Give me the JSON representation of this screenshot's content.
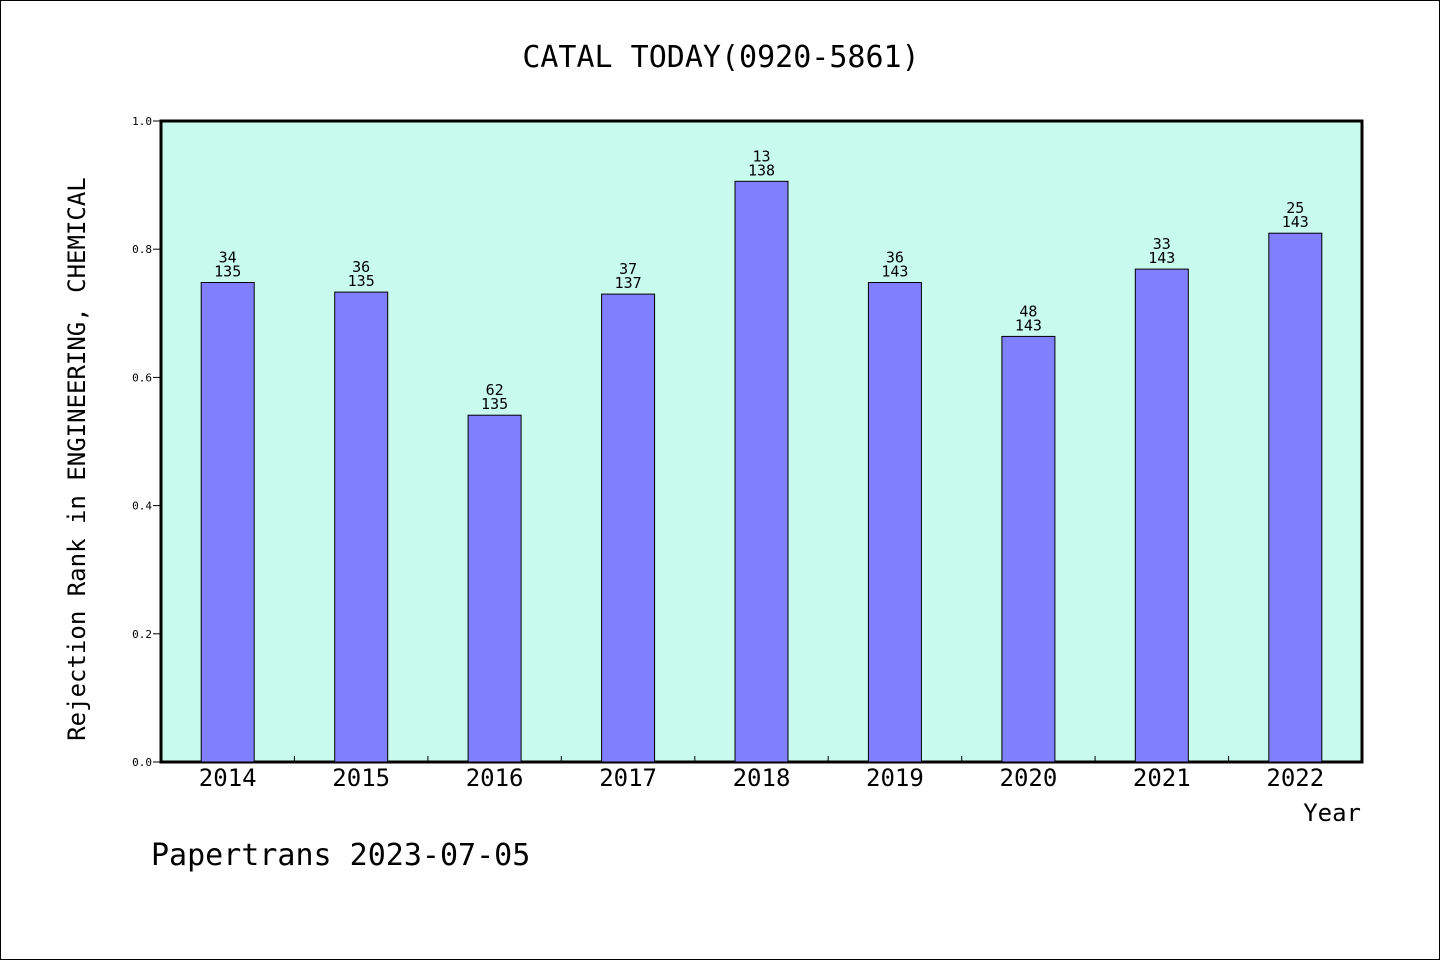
{
  "chart_data": {
    "type": "bar",
    "title": "CATAL TODAY(0920-5861)",
    "xlabel": "Year",
    "ylabel": "Rejection Rank in ENGINEERING, CHEMICAL",
    "ylim": [
      0,
      1.0
    ],
    "yticks": [
      "0.0",
      "0.2",
      "0.4",
      "0.6",
      "0.8",
      "1.0"
    ],
    "grid": false,
    "categories": [
      "2014",
      "2015",
      "2016",
      "2017",
      "2018",
      "2019",
      "2020",
      "2021",
      "2022"
    ],
    "values": [
      0.748,
      0.733,
      0.541,
      0.73,
      0.906,
      0.748,
      0.664,
      0.769,
      0.825
    ],
    "rank_labels": [
      "34",
      "36",
      "62",
      "37",
      "13",
      "36",
      "48",
      "33",
      "25"
    ],
    "total_labels": [
      "135",
      "135",
      "135",
      "137",
      "138",
      "143",
      "143",
      "143",
      "143"
    ],
    "colors": {
      "plot_background": "#c8fbee",
      "bar_fill": "#8080ff",
      "bar_edge": "#000000"
    }
  },
  "footer": "Papertrans 2023-07-05"
}
